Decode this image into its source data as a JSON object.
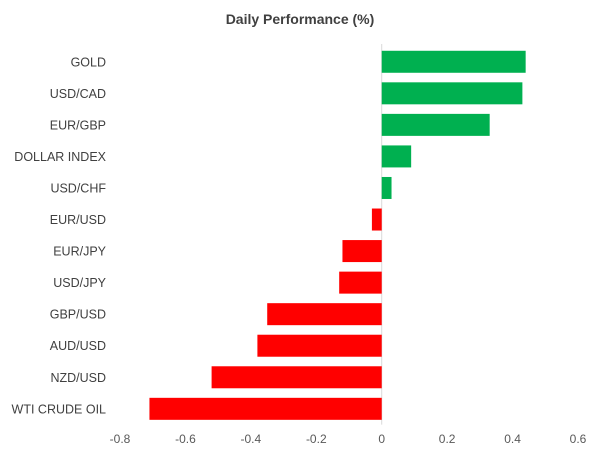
{
  "chart_data": {
    "type": "bar",
    "orientation": "horizontal",
    "title": "Daily Performance (%)",
    "xlabel": "",
    "ylabel": "",
    "xlim": [
      -0.8,
      0.6
    ],
    "ticks": [
      -0.8,
      -0.6,
      -0.4,
      -0.2,
      0,
      0.2,
      0.4,
      0.6
    ],
    "tick_labels": [
      "-0.8",
      "-0.6",
      "-0.4",
      "-0.2",
      "0",
      "0.2",
      "0.4",
      "0.6"
    ],
    "grid": false,
    "legend": "none",
    "categories": [
      "GOLD",
      "USD/CAD",
      "EUR/GBP",
      "DOLLAR INDEX",
      "USD/CHF",
      "EUR/USD",
      "EUR/JPY",
      "USD/JPY",
      "GBP/USD",
      "AUD/USD",
      "NZD/USD",
      "WTI CRUDE OIL"
    ],
    "values": [
      0.44,
      0.43,
      0.33,
      0.09,
      0.03,
      -0.03,
      -0.12,
      -0.13,
      -0.35,
      -0.38,
      -0.52,
      -0.71
    ],
    "colors": {
      "positive": "#00b050",
      "negative": "#ff0000",
      "text": "#404040",
      "axis": "#d9d9d9"
    }
  }
}
